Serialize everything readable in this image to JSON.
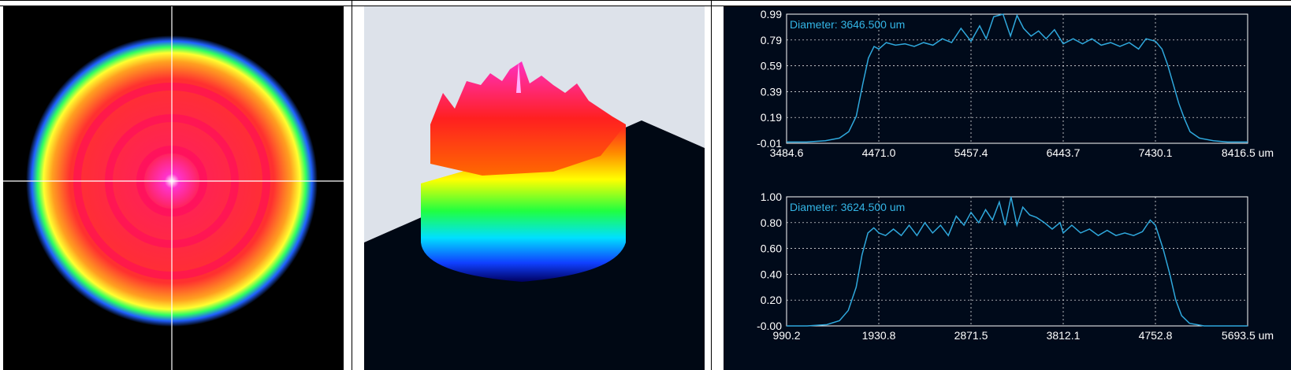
{
  "colors": {
    "profile_line": "#2fa8dc",
    "diameter_text": "#33b5e5",
    "axis_text": "#ffffff",
    "plot_bg": "#000a1a",
    "grid": "#ffffff"
  },
  "chart_data": [
    {
      "type": "heatmap",
      "title": "",
      "description_colormap": "rainbow",
      "crosshair": true
    },
    {
      "type": "area",
      "title": "",
      "view": "3d"
    },
    {
      "type": "line",
      "title": "",
      "diameter_label": "Diameter: 3646.500 um",
      "xlabel": "",
      "ylabel": "",
      "x_unit": "um",
      "xlim": [
        3484.6,
        8416.5
      ],
      "ylim": [
        -0.01,
        0.99
      ],
      "x_ticks": [
        "3484.6",
        "4471.0",
        "5457.4",
        "6443.7",
        "7430.1",
        "8416.5"
      ],
      "y_ticks": [
        "0.99",
        "0.79",
        "0.59",
        "0.39",
        "0.19",
        "-0.01"
      ],
      "grid": true,
      "series": [
        {
          "x": [
            3484.6,
            3700,
            3900,
            4050,
            4150,
            4230,
            4300,
            4360,
            4420,
            4471,
            4550,
            4650,
            4750,
            4850,
            4950,
            5050,
            5150,
            5250,
            5350,
            5457.4,
            5550,
            5620,
            5700,
            5800,
            5880,
            5950,
            6020,
            6100,
            6180,
            6260,
            6350,
            6443.7,
            6550,
            6650,
            6750,
            6850,
            6950,
            7050,
            7150,
            7250,
            7330,
            7430.1,
            7500,
            7560,
            7620,
            7680,
            7740,
            7800,
            7900,
            8050,
            8200,
            8416.5
          ],
          "y": [
            0.0,
            0.0,
            0.01,
            0.03,
            0.08,
            0.2,
            0.45,
            0.65,
            0.74,
            0.72,
            0.77,
            0.75,
            0.76,
            0.74,
            0.77,
            0.75,
            0.8,
            0.77,
            0.88,
            0.78,
            0.9,
            0.8,
            0.97,
            0.99,
            0.82,
            0.98,
            0.88,
            0.82,
            0.86,
            0.8,
            0.87,
            0.76,
            0.8,
            0.76,
            0.8,
            0.75,
            0.77,
            0.74,
            0.77,
            0.72,
            0.8,
            0.78,
            0.72,
            0.6,
            0.45,
            0.3,
            0.18,
            0.08,
            0.03,
            0.01,
            0.0,
            0.0
          ]
        }
      ]
    },
    {
      "type": "line",
      "title": "",
      "diameter_label": "Diameter: 3624.500 um",
      "xlabel": "",
      "ylabel": "",
      "x_unit": "um",
      "xlim": [
        990.2,
        5693.5
      ],
      "ylim": [
        0.0,
        1.0
      ],
      "x_ticks": [
        "990.2",
        "1930.8",
        "2871.5",
        "3812.1",
        "4752.8",
        "5693.5"
      ],
      "y_ticks": [
        "1.00",
        "0.80",
        "0.60",
        "0.40",
        "0.20",
        "-0.00"
      ],
      "grid": true,
      "series": [
        {
          "x": [
            990.2,
            1200,
            1400,
            1530,
            1620,
            1700,
            1760,
            1820,
            1880,
            1930.8,
            2000,
            2080,
            2160,
            2240,
            2320,
            2400,
            2480,
            2560,
            2640,
            2720,
            2800,
            2871.5,
            2950,
            3020,
            3090,
            3160,
            3220,
            3280,
            3340,
            3400,
            3470,
            3540,
            3620,
            3700,
            3780,
            3812.1,
            3900,
            3990,
            4080,
            4170,
            4260,
            4350,
            4440,
            4530,
            4620,
            4700,
            4752.8,
            4830,
            4900,
            4960,
            5020,
            5100,
            5250,
            5450,
            5693.5
          ],
          "y": [
            0.0,
            0.0,
            0.01,
            0.04,
            0.12,
            0.3,
            0.55,
            0.72,
            0.76,
            0.72,
            0.7,
            0.75,
            0.7,
            0.78,
            0.7,
            0.8,
            0.72,
            0.78,
            0.7,
            0.85,
            0.78,
            0.88,
            0.8,
            0.9,
            0.82,
            0.96,
            0.78,
            1.0,
            0.78,
            0.92,
            0.86,
            0.84,
            0.8,
            0.75,
            0.8,
            0.72,
            0.78,
            0.72,
            0.75,
            0.7,
            0.74,
            0.7,
            0.72,
            0.7,
            0.73,
            0.82,
            0.78,
            0.6,
            0.4,
            0.2,
            0.08,
            0.02,
            0.0,
            0.0,
            0.0
          ]
        }
      ]
    }
  ]
}
